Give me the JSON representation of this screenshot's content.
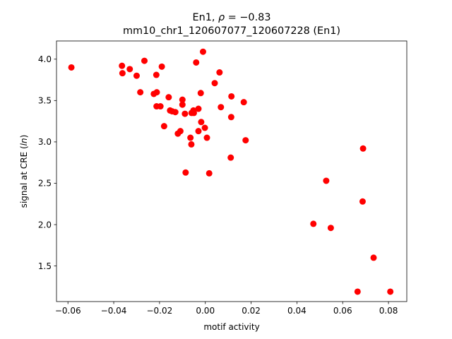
{
  "chart_data": {
    "type": "scatter",
    "title_line1": "En1, ρ = −0.83",
    "title_line2": "mm10_chr1_120607077_120607228 (En1)",
    "xlabel": "motif activity",
    "ylabel": "signal at CRE (ln)",
    "xlim": [
      -0.065,
      0.088
    ],
    "ylim": [
      1.07,
      4.22
    ],
    "xticks": [
      -0.06,
      -0.04,
      -0.02,
      0.0,
      0.02,
      0.04,
      0.06,
      0.08
    ],
    "xtick_labels": [
      "−0.06",
      "−0.04",
      "−0.02",
      "0.00",
      "0.02",
      "0.04",
      "0.06",
      "0.08"
    ],
    "yticks": [
      1.5,
      2.0,
      2.5,
      3.0,
      3.5,
      4.0
    ],
    "ytick_labels": [
      "1.5",
      "2.0",
      "2.5",
      "3.0",
      "3.5",
      "4.0"
    ],
    "grid": false,
    "marker_color": "#ff0000",
    "points": [
      {
        "x": -0.0585,
        "y": 3.9
      },
      {
        "x": -0.0364,
        "y": 3.92
      },
      {
        "x": -0.0362,
        "y": 3.83
      },
      {
        "x": -0.033,
        "y": 3.88
      },
      {
        "x": -0.03,
        "y": 3.8
      },
      {
        "x": -0.0284,
        "y": 3.6
      },
      {
        "x": -0.0266,
        "y": 3.98
      },
      {
        "x": -0.0225,
        "y": 3.58
      },
      {
        "x": -0.0214,
        "y": 3.81
      },
      {
        "x": -0.0212,
        "y": 3.6
      },
      {
        "x": -0.0213,
        "y": 3.43
      },
      {
        "x": -0.0196,
        "y": 3.43
      },
      {
        "x": -0.019,
        "y": 3.91
      },
      {
        "x": -0.018,
        "y": 3.19
      },
      {
        "x": -0.016,
        "y": 3.54
      },
      {
        "x": -0.0154,
        "y": 3.38
      },
      {
        "x": -0.0145,
        "y": 3.37
      },
      {
        "x": -0.0131,
        "y": 3.36
      },
      {
        "x": -0.012,
        "y": 3.1
      },
      {
        "x": -0.0109,
        "y": 3.13
      },
      {
        "x": -0.01,
        "y": 3.51
      },
      {
        "x": -0.01,
        "y": 3.45
      },
      {
        "x": -0.0089,
        "y": 3.34
      },
      {
        "x": -0.0086,
        "y": 2.63
      },
      {
        "x": -0.0065,
        "y": 3.05
      },
      {
        "x": -0.0061,
        "y": 2.97
      },
      {
        "x": -0.006,
        "y": 3.35
      },
      {
        "x": -0.0052,
        "y": 3.38
      },
      {
        "x": -0.005,
        "y": 3.35
      },
      {
        "x": -0.004,
        "y": 3.96
      },
      {
        "x": -0.003,
        "y": 3.4
      },
      {
        "x": -0.003,
        "y": 3.13
      },
      {
        "x": -0.002,
        "y": 3.59
      },
      {
        "x": -0.0018,
        "y": 3.24
      },
      {
        "x": -0.001,
        "y": 4.09
      },
      {
        "x": -0.0002,
        "y": 3.17
      },
      {
        "x": 0.0007,
        "y": 3.05
      },
      {
        "x": 0.0017,
        "y": 2.62
      },
      {
        "x": 0.0041,
        "y": 3.71
      },
      {
        "x": 0.0062,
        "y": 3.84
      },
      {
        "x": 0.0068,
        "y": 3.42
      },
      {
        "x": 0.0111,
        "y": 2.81
      },
      {
        "x": 0.0113,
        "y": 3.3
      },
      {
        "x": 0.0114,
        "y": 3.55
      },
      {
        "x": 0.0168,
        "y": 3.48
      },
      {
        "x": 0.0176,
        "y": 3.02
      },
      {
        "x": 0.0472,
        "y": 2.01
      },
      {
        "x": 0.0528,
        "y": 2.53
      },
      {
        "x": 0.0548,
        "y": 1.96
      },
      {
        "x": 0.0665,
        "y": 1.19
      },
      {
        "x": 0.0687,
        "y": 2.28
      },
      {
        "x": 0.0689,
        "y": 2.92
      },
      {
        "x": 0.0735,
        "y": 1.6
      },
      {
        "x": 0.0808,
        "y": 1.19
      }
    ]
  }
}
